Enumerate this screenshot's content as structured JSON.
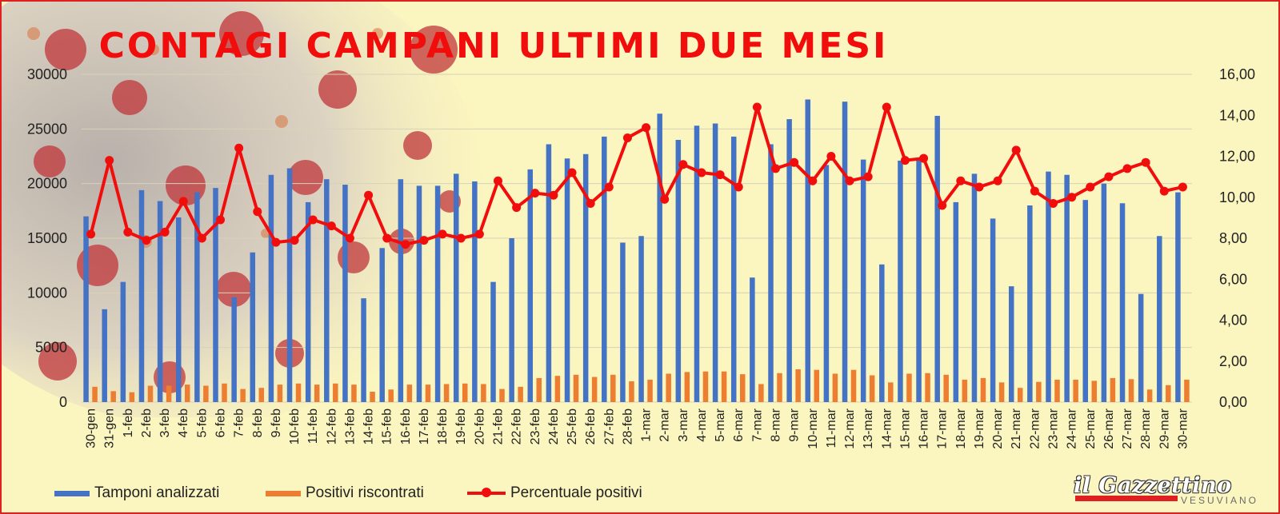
{
  "title": "CONTAGI CAMPANI ULTIMI DUE MESI",
  "colors": {
    "tamponi": "#4472c4",
    "positivi": "#ed7d31",
    "percentuale": "#f20d0d",
    "title": "#f20d0d"
  },
  "logo": {
    "main": "il Gazzettino",
    "sub": "VESUVIANO"
  },
  "chart_data": {
    "type": "bar",
    "categories": [
      "30-gen",
      "31-gen",
      "1-feb",
      "2-feb",
      "3-feb",
      "4-feb",
      "5-feb",
      "6-feb",
      "7-feb",
      "8-feb",
      "9-feb",
      "10-feb",
      "11-feb",
      "12-feb",
      "13-feb",
      "14-feb",
      "15-feb",
      "16-feb",
      "17-feb",
      "18-feb",
      "19-feb",
      "20-feb",
      "21-feb",
      "22-feb",
      "23-feb",
      "24-feb",
      "25-feb",
      "26-feb",
      "27-feb",
      "28-feb",
      "1-mar",
      "2-mar",
      "3-mar",
      "4-mar",
      "5-mar",
      "6-mar",
      "7-mar",
      "8-mar",
      "9-mar",
      "10-mar",
      "11-mar",
      "12-mar",
      "13-mar",
      "14-mar",
      "15-mar",
      "16-mar",
      "17-mar",
      "18-mar",
      "19-mar",
      "20-mar",
      "21-mar",
      "22-mar",
      "23-mar",
      "24-mar",
      "25-mar",
      "26-mar",
      "27-mar",
      "28-mar",
      "29-mar",
      "30-mar"
    ],
    "series": [
      {
        "name": "Tamponi analizzati",
        "axis": "left",
        "kind": "bar",
        "values": [
          17000,
          8500,
          11000,
          19400,
          18400,
          16900,
          19200,
          19600,
          9600,
          13700,
          20800,
          21400,
          18300,
          20400,
          19900,
          9500,
          14100,
          20400,
          19800,
          19800,
          20900,
          20200,
          11000,
          15000,
          21300,
          23600,
          22300,
          22700,
          24300,
          14600,
          15200,
          26400,
          24000,
          25300,
          25500,
          24300,
          11400,
          23600,
          25900,
          27700,
          21700,
          27500,
          22200,
          12600,
          22100,
          22200,
          26200,
          18300,
          20900,
          16800,
          10600,
          18000,
          21100,
          20800,
          18500,
          20000,
          18200,
          9900,
          15200,
          19200
        ]
      },
      {
        "name": "Positivi riscontrati",
        "axis": "left",
        "kind": "bar",
        "values": [
          1400,
          1000,
          900,
          1500,
          1500,
          1600,
          1500,
          1700,
          1200,
          1300,
          1600,
          1700,
          1600,
          1700,
          1600,
          950,
          1150,
          1600,
          1600,
          1650,
          1700,
          1650,
          1200,
          1400,
          2200,
          2400,
          2500,
          2300,
          2500,
          1900,
          2050,
          2600,
          2750,
          2800,
          2800,
          2550,
          1650,
          2650,
          3000,
          2950,
          2600,
          2950,
          2450,
          1800,
          2600,
          2650,
          2500,
          2050,
          2200,
          1800,
          1300,
          1850,
          2050,
          2050,
          1950,
          2200,
          2100,
          1150,
          1550,
          2050
        ]
      },
      {
        "name": "Percentuale positivi",
        "axis": "right",
        "kind": "line",
        "values": [
          8.2,
          11.8,
          8.3,
          7.9,
          8.3,
          9.8,
          8.0,
          8.9,
          12.4,
          9.3,
          7.8,
          7.9,
          8.9,
          8.6,
          8.0,
          10.1,
          8.0,
          7.7,
          7.9,
          8.2,
          8.0,
          8.2,
          10.8,
          9.5,
          10.2,
          10.1,
          11.2,
          9.7,
          10.5,
          12.9,
          13.4,
          9.9,
          11.6,
          11.2,
          11.1,
          10.5,
          14.4,
          11.4,
          11.7,
          10.8,
          12.0,
          10.8,
          11.0,
          14.4,
          11.8,
          11.9,
          9.6,
          10.8,
          10.5,
          10.8,
          12.3,
          10.3,
          9.7,
          10.0,
          10.5,
          11.0,
          11.4,
          11.7,
          10.3,
          10.5
        ]
      }
    ],
    "y_left": {
      "min": 0,
      "max": 30000,
      "ticks": [
        "0",
        "5000",
        "10000",
        "15000",
        "20000",
        "25000",
        "30000"
      ]
    },
    "y_right": {
      "min": 0,
      "max": 16,
      "ticks": [
        "0,00",
        "2,00",
        "4,00",
        "6,00",
        "8,00",
        "10,00",
        "12,00",
        "14,00",
        "16,00"
      ]
    },
    "grid": true,
    "legend_position": "bottom-left"
  },
  "legend": [
    {
      "label": "Tamponi analizzati",
      "color": "#4472c4",
      "kind": "bar"
    },
    {
      "label": "Positivi riscontrati",
      "color": "#ed7d31",
      "kind": "bar"
    },
    {
      "label": "Percentuale positivi",
      "color": "#f20d0d",
      "kind": "line"
    }
  ]
}
